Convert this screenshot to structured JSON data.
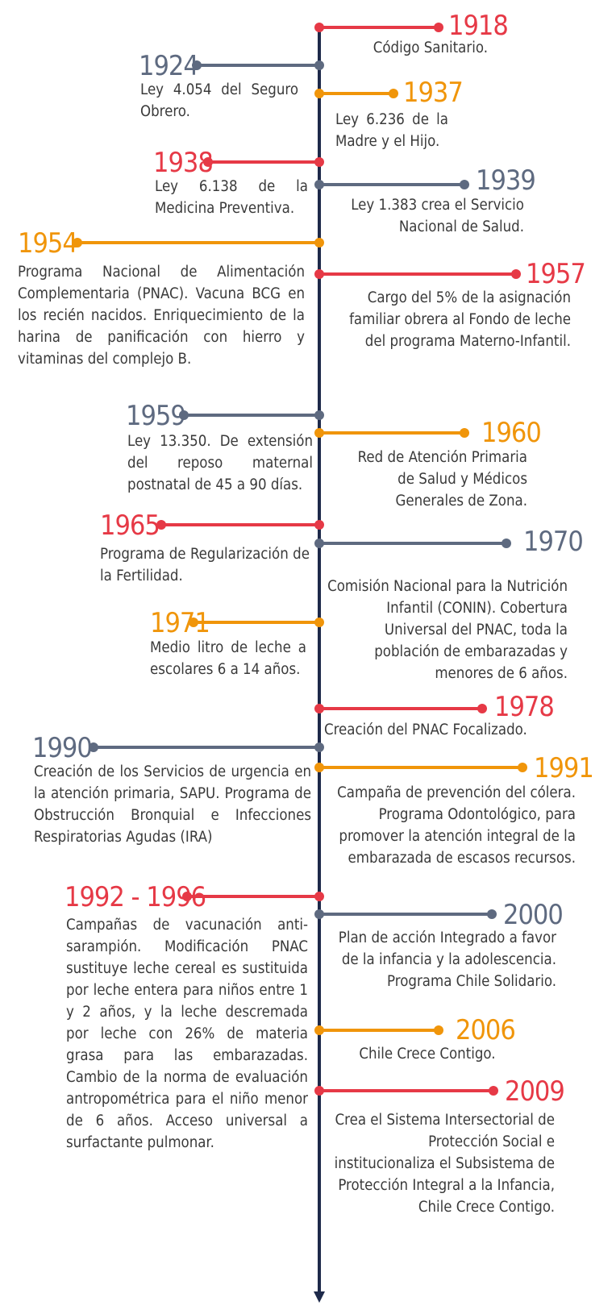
{
  "colors": {
    "red": "#e63946",
    "gray": "#5e6a80",
    "orange": "#f0950a",
    "axis": "#1e2a4a"
  },
  "events": [
    {
      "year": "1918",
      "color": "red",
      "text": "Código Sanitario."
    },
    {
      "year": "1924",
      "color": "gray",
      "text": "Ley 4.054 del Seguro Obrero."
    },
    {
      "year": "1937",
      "color": "orange",
      "text": "Ley 6.236 de la Madre y el Hijo."
    },
    {
      "year": "1938",
      "color": "red",
      "text": "Ley 6.138 de la Medicina Preventiva."
    },
    {
      "year": "1939",
      "color": "gray",
      "text": "Ley 1.383 crea el Servicio Nacional de Salud."
    },
    {
      "year": "1954",
      "color": "orange",
      "text": "Programa Nacional de Alimentación Complementaria (PNAC). Vacuna BCG en los recién nacidos. Enriquecimiento de la harina de panificación con hierro y vitaminas del complejo B."
    },
    {
      "year": "1957",
      "color": "red",
      "text": "Cargo del 5% de la asignación familiar obrera al Fondo de leche del programa Materno-Infantil."
    },
    {
      "year": "1959",
      "color": "gray",
      "text": "Ley 13.350. De extensión del reposo maternal postnatal de 45 a 90 días."
    },
    {
      "year": "1960",
      "color": "orange",
      "text": "Red de Atención Primaria de Salud y Médicos Generales de Zona."
    },
    {
      "year": "1965",
      "color": "red",
      "text": "Programa de Regularización de la Fertilidad."
    },
    {
      "year": "1970",
      "color": "gray",
      "text": "Comisión Nacional para la Nutrición Infantil (CONIN). Cobertura Universal del PNAC, toda la población de embarazadas y menores de 6 años."
    },
    {
      "year": "1971",
      "color": "orange",
      "text": "Medio litro de leche a escolares 6 a 14 años."
    },
    {
      "year": "1978",
      "color": "red",
      "text": "Creación del PNAC Focalizado."
    },
    {
      "year": "1990",
      "color": "gray",
      "text": "Creación de los Servicios de urgencia en la atención primaria, SAPU. Programa de Obstrucción Bronquial e Infecciones Respiratorias Agudas (IRA)"
    },
    {
      "year": "1991",
      "color": "orange",
      "text": "Campaña de prevención del cólera. Programa Odontológico, para promover la atención integral de la embarazada de escasos recursos."
    },
    {
      "year": "1992 - 1996",
      "color": "red",
      "text": "Campañas de vacunación anti-sarampión. Modificación PNAC sustituye leche cereal es sustituida por leche entera para niños entre 1 y 2 años, y la leche descremada por leche con 26% de materia grasa para las embarazadas. Cambio de la norma de evaluación antropométrica para el niño menor de 6 años. Acceso universal a surfactante pulmonar."
    },
    {
      "year": "2000",
      "color": "gray",
      "text": "Plan de acción Integrado a favor de la infancia y la adolescencia. Programa Chile Solidario."
    },
    {
      "year": "2006",
      "color": "orange",
      "text": "Chile Crece Contigo."
    },
    {
      "year": "2009",
      "color": "red",
      "text": "Crea el Sistema Intersectorial de Protección Social e institucionaliza el Subsistema de Protección Integral a la Infancia, Chile Crece Contigo."
    }
  ]
}
